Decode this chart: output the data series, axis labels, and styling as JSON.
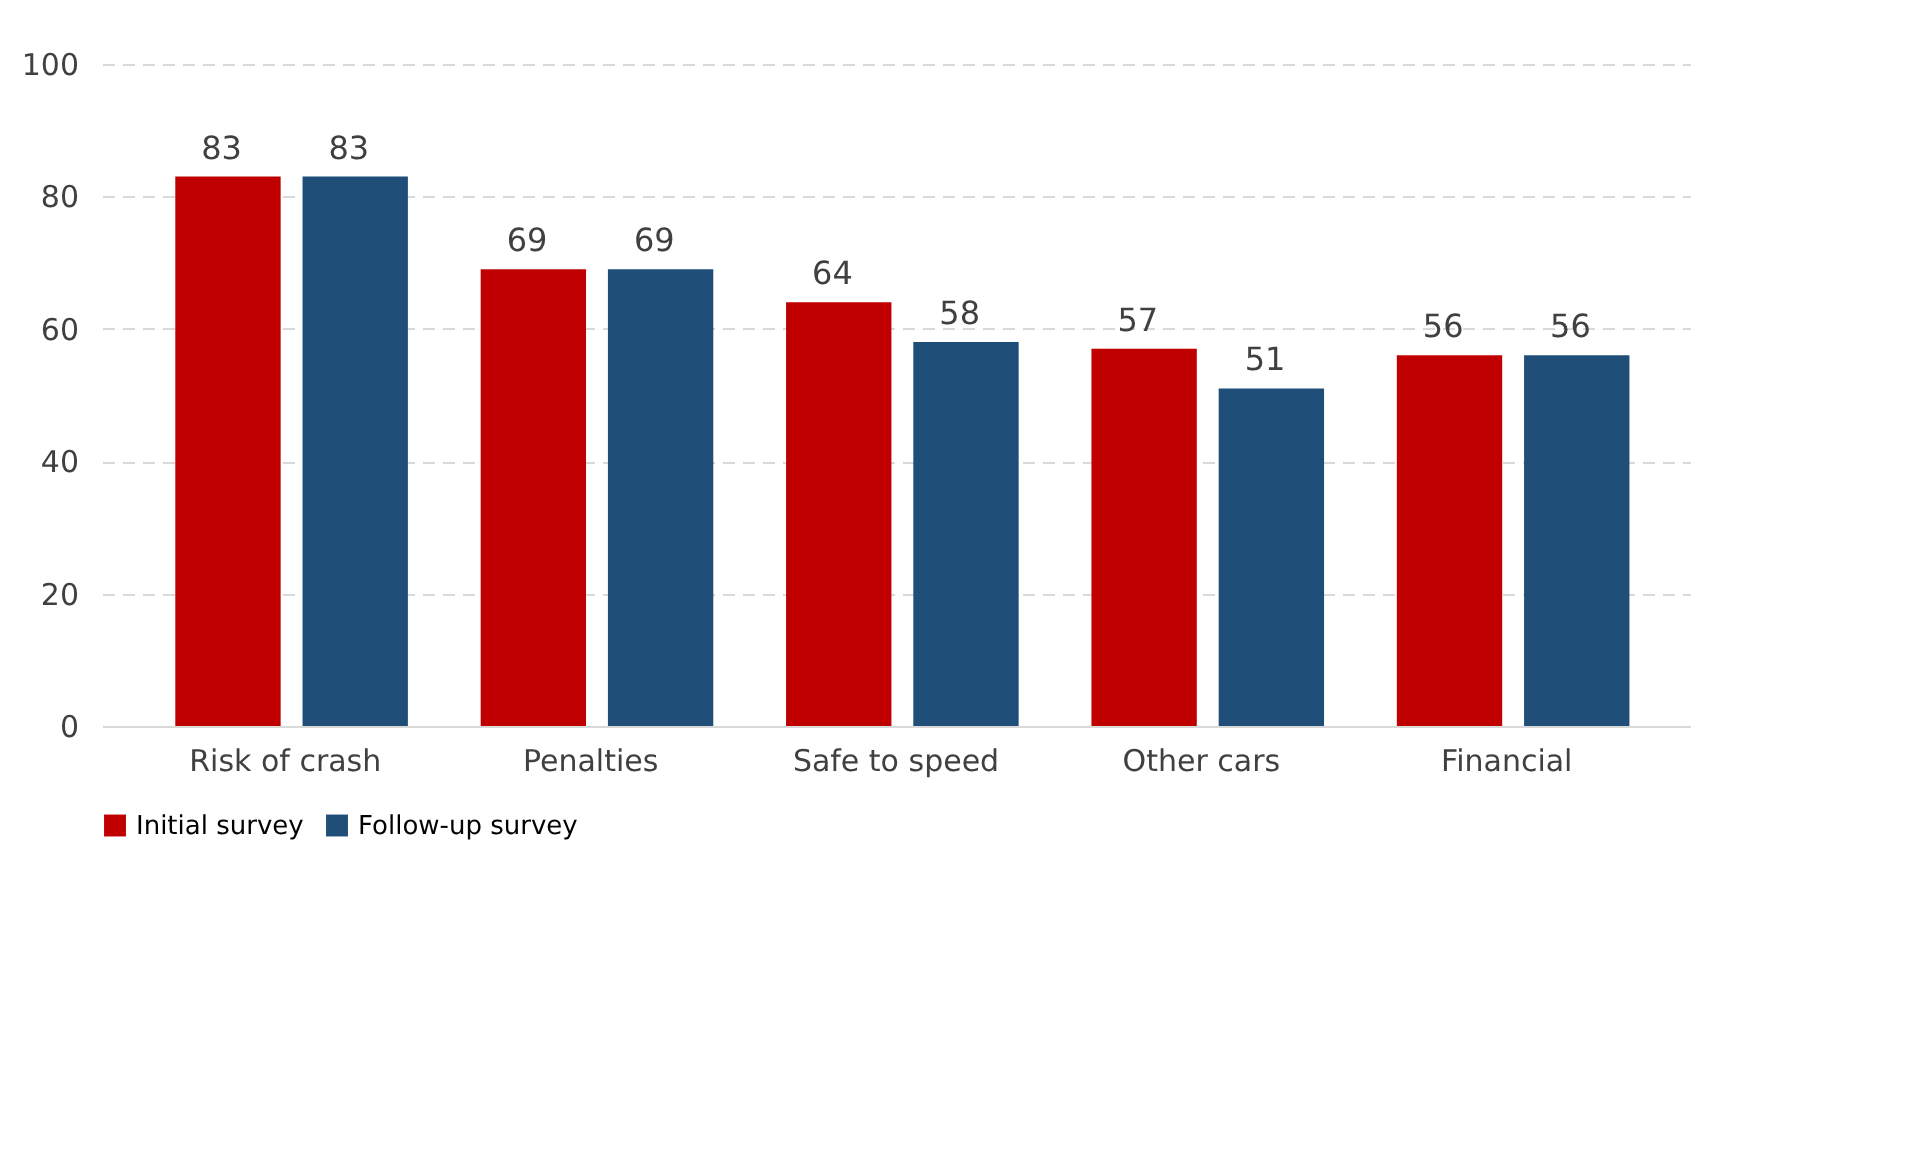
{
  "chart_data": {
    "type": "bar",
    "categories": [
      "Risk of crash",
      "Penalties",
      "Safe to speed",
      "Other cars",
      "Financial"
    ],
    "series": [
      {
        "name": "Initial survey",
        "color": "#c00000",
        "values": [
          83,
          69,
          64,
          57,
          56
        ]
      },
      {
        "name": "Follow-up survey",
        "color": "#1f4e79",
        "values": [
          83,
          69,
          58,
          51,
          56
        ]
      }
    ],
    "ylim": [
      0,
      100
    ],
    "yticks": [
      0,
      20,
      40,
      60,
      80,
      100
    ],
    "grid": "y",
    "legend": "bottom",
    "data_labels": true
  }
}
